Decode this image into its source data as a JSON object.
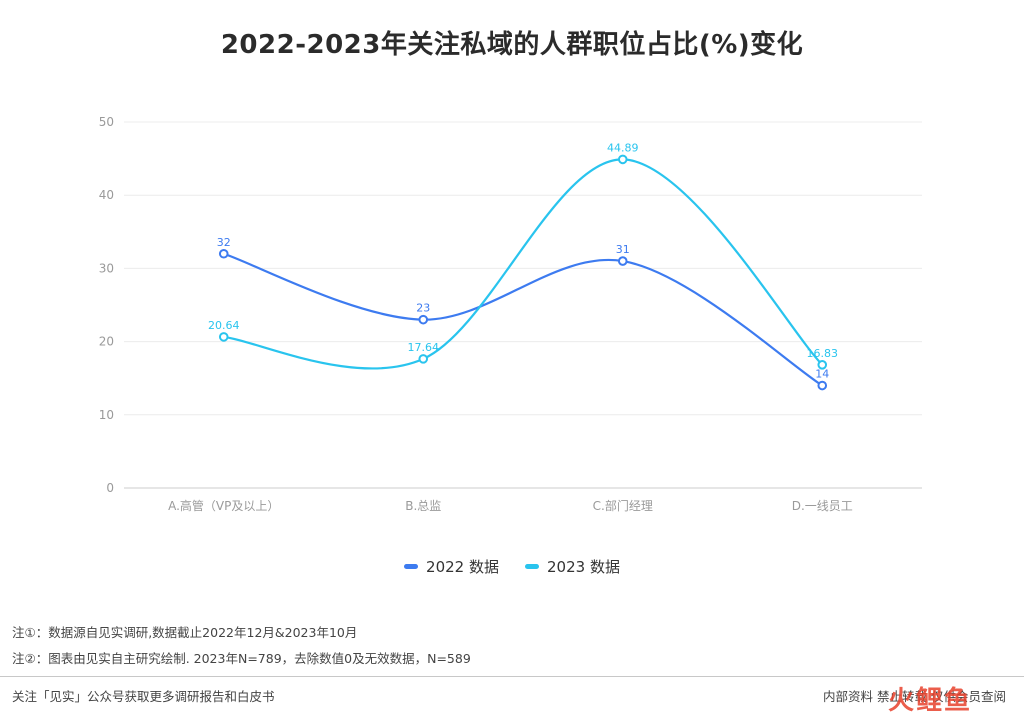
{
  "chart_data": {
    "type": "line",
    "title": "2022-2023年关注私域的人群职位占比(%)变化",
    "categories": [
      "A.高管（VP及以上）",
      "B.总监",
      "C.部门经理",
      "D.一线员工"
    ],
    "series": [
      {
        "name": "2022 数据",
        "values": [
          32,
          23,
          31,
          14
        ],
        "labels": [
          "32",
          "23",
          "31",
          "14"
        ],
        "color": "#3d7bf0"
      },
      {
        "name": "2023 数据",
        "values": [
          20.64,
          17.64,
          44.89,
          16.83
        ],
        "labels": [
          "20.64",
          "17.64",
          "44.89",
          "16.83"
        ],
        "color": "#29c4ee"
      }
    ],
    "yticks": [
      "0",
      "10",
      "20",
      "30",
      "40",
      "50"
    ],
    "ylim": [
      0,
      50
    ],
    "grid": true,
    "legend": "bottom-center",
    "smooth": true
  },
  "notes": {
    "note1": "注①：数据源自见实调研,数据截止2022年12月&2023年10月",
    "note2": "注②：图表由见实自主研究绘制. 2023年N=789，去除数值0及无效数据，N=589"
  },
  "footer": {
    "left": "关注「见实」公众号获取更多调研报告和白皮书",
    "right": "内部资料 禁止转载 仅供会员查阅",
    "watermark": "火鲤鱼"
  }
}
